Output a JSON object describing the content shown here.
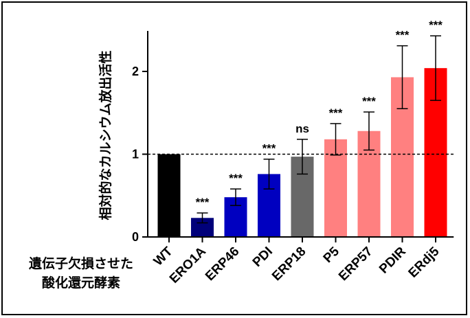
{
  "chart_data": {
    "type": "bar",
    "title": "",
    "ylabel": "相対的なカルシウム放出活性",
    "xlabel_lines": [
      "遺伝子欠損させた",
      "酸化還元酵素"
    ],
    "ylim": [
      0,
      2.5
    ],
    "yticks": [
      0,
      1,
      2
    ],
    "reference_line": 1,
    "categories": [
      "WT",
      "ERO1A",
      "ERP46",
      "PDI",
      "ERP18",
      "P5",
      "ERP57",
      "PDIR",
      "ERdj5"
    ],
    "values": [
      1.0,
      0.23,
      0.48,
      0.76,
      0.97,
      1.18,
      1.28,
      1.93,
      2.04
    ],
    "errors": [
      0.0,
      0.06,
      0.1,
      0.18,
      0.21,
      0.19,
      0.23,
      0.38,
      0.39
    ],
    "significance": [
      "",
      "***",
      "***",
      "***",
      "ns",
      "***",
      "***",
      "***",
      "***"
    ],
    "colors": [
      "#000000",
      "#00007a",
      "#0000c0",
      "#0000c0",
      "#686868",
      "#ff8080",
      "#ff8080",
      "#ff8080",
      "#ff0000"
    ],
    "grid": false,
    "legend": "none"
  }
}
